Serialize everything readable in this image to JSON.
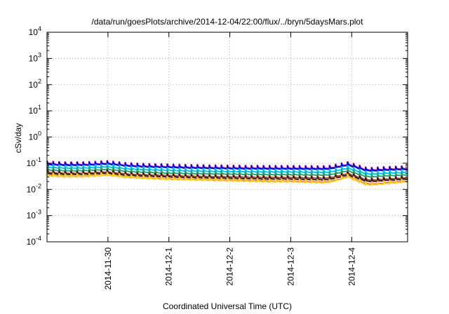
{
  "chart_data": {
    "type": "line",
    "title": "/data/run/goesPlots/archive/2014-12-04/22:00/flux/../bryn/5daysMars.plot",
    "xlabel": "Coordinated Universal Time (UTC)",
    "ylabel": "cSv/day",
    "yscale": "log",
    "ylim": [
      0.0001,
      10000
    ],
    "y_ticks": [
      {
        "base": "10",
        "exp": "-4",
        "value": 0.0001
      },
      {
        "base": "10",
        "exp": "-3",
        "value": 0.001
      },
      {
        "base": "10",
        "exp": "-2",
        "value": 0.01
      },
      {
        "base": "10",
        "exp": "-1",
        "value": 0.1
      },
      {
        "base": "10",
        "exp": "0",
        "value": 1
      },
      {
        "base": "10",
        "exp": "1",
        "value": 10
      },
      {
        "base": "10",
        "exp": "2",
        "value": 100
      },
      {
        "base": "10",
        "exp": "3",
        "value": 1000
      },
      {
        "base": "10",
        "exp": "4",
        "value": 10000
      }
    ],
    "xlim": [
      "2014-11-29 00:00",
      "2014-12-04 22:00"
    ],
    "x_ticks": [
      "2014-11-30",
      "2014-12-1",
      "2014-12-2",
      "2014-12-3",
      "2014-12-4"
    ],
    "x_tick_days": [
      1,
      2,
      3,
      4,
      5
    ],
    "x_end_day": 5.917,
    "grid": true,
    "series": [
      {
        "color": "#ff0000",
        "values": [
          0.105,
          0.098,
          0.1,
          0.11,
          0.092,
          0.085,
          0.082,
          0.078,
          0.076,
          0.074,
          0.073,
          0.072,
          0.072,
          0.071,
          0.07,
          0.1,
          0.06,
          0.066,
          0.07
        ]
      },
      {
        "color": "#0000ff",
        "values": [
          0.1,
          0.093,
          0.095,
          0.105,
          0.088,
          0.081,
          0.078,
          0.074,
          0.072,
          0.07,
          0.069,
          0.068,
          0.068,
          0.067,
          0.066,
          0.095,
          0.056,
          0.062,
          0.066
        ]
      },
      {
        "color": "#00bfff",
        "values": [
          0.078,
          0.072,
          0.074,
          0.082,
          0.068,
          0.063,
          0.06,
          0.057,
          0.055,
          0.054,
          0.053,
          0.052,
          0.052,
          0.051,
          0.05,
          0.072,
          0.042,
          0.047,
          0.05
        ]
      },
      {
        "color": "#00b27f",
        "values": [
          0.062,
          0.057,
          0.059,
          0.065,
          0.054,
          0.05,
          0.047,
          0.045,
          0.044,
          0.043,
          0.042,
          0.041,
          0.041,
          0.04,
          0.039,
          0.057,
          0.033,
          0.037,
          0.04
        ]
      },
      {
        "color": "#a0522d",
        "values": [
          0.05,
          0.046,
          0.047,
          0.052,
          0.043,
          0.04,
          0.038,
          0.036,
          0.035,
          0.034,
          0.033,
          0.032,
          0.032,
          0.031,
          0.03,
          0.045,
          0.025,
          0.028,
          0.031
        ]
      },
      {
        "color": "#202020",
        "values": [
          0.045,
          0.042,
          0.043,
          0.047,
          0.039,
          0.036,
          0.034,
          0.032,
          0.031,
          0.03,
          0.029,
          0.028,
          0.028,
          0.027,
          0.026,
          0.04,
          0.022,
          0.025,
          0.028
        ]
      },
      {
        "color": "#ff00ff",
        "values": [
          0.038,
          0.035,
          0.036,
          0.04,
          0.033,
          0.03,
          0.028,
          0.027,
          0.026,
          0.025,
          0.024,
          0.023,
          0.023,
          0.022,
          0.021,
          0.034,
          0.017,
          0.02,
          0.023
        ]
      },
      {
        "color": "#ffd700",
        "values": [
          0.037,
          0.034,
          0.035,
          0.039,
          0.032,
          0.029,
          0.027,
          0.026,
          0.025,
          0.024,
          0.023,
          0.022,
          0.022,
          0.021,
          0.02,
          0.033,
          0.016,
          0.019,
          0.022
        ]
      }
    ]
  }
}
